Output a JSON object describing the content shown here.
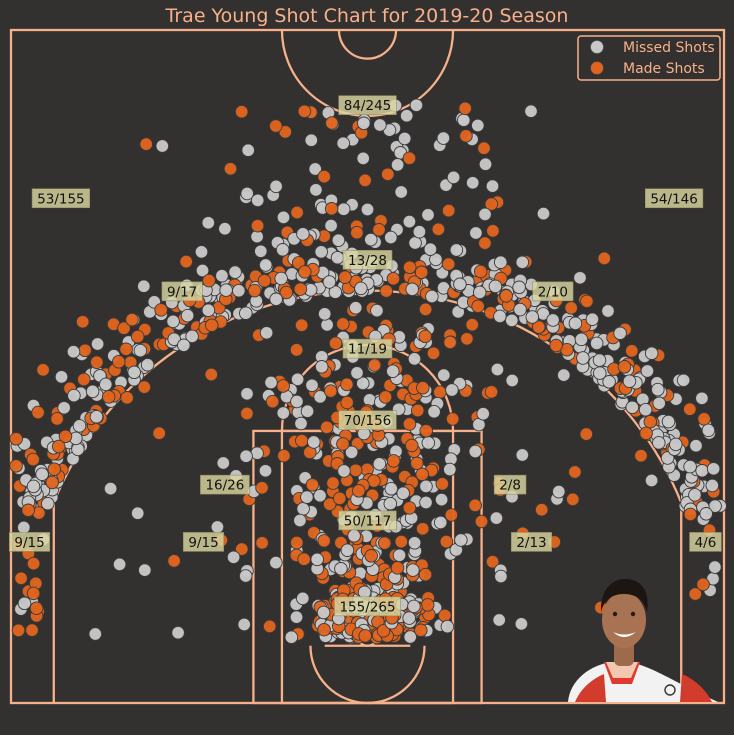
{
  "title": "Trae Young Shot Chart for 2019-20 Season",
  "colors": {
    "background": "#333030",
    "court_lines": "#f7b18a",
    "title": "#f7b18a",
    "made": "#e0641e",
    "missed": "#c8c8c8",
    "zone_label_bg": "#d8d6a0"
  },
  "legend": {
    "placement": "top-right",
    "missed_label": "Missed Shots",
    "made_label": "Made Shots"
  },
  "player_photo": {
    "icon": "player-headshot"
  },
  "chart_data": {
    "type": "scatter",
    "title": "Trae Young Shot Chart for 2019-20 Season",
    "xlim": [
      -250,
      250
    ],
    "ylim": [
      -47.5,
      422.5
    ],
    "grid": false,
    "series": [
      {
        "name": "Missed Shots",
        "color": "#c8c8c8"
      },
      {
        "name": "Made Shots",
        "color": "#e0641e"
      }
    ],
    "zones": [
      {
        "label": "155/265",
        "x": 0,
        "y": 20
      },
      {
        "label": "50/117",
        "x": 0,
        "y": 80
      },
      {
        "label": "70/156",
        "x": 0,
        "y": 150
      },
      {
        "label": "11/19",
        "x": 0,
        "y": 200
      },
      {
        "label": "13/28",
        "x": 0,
        "y": 262
      },
      {
        "label": "84/245",
        "x": 0,
        "y": 370
      },
      {
        "label": "16/26",
        "x": -100,
        "y": 105
      },
      {
        "label": "2/8",
        "x": 100,
        "y": 105
      },
      {
        "label": "9/15",
        "x": -115,
        "y": 65
      },
      {
        "label": "2/13",
        "x": 115,
        "y": 65
      },
      {
        "label": "9/17",
        "x": -130,
        "y": 240
      },
      {
        "label": "2/10",
        "x": 130,
        "y": 240
      },
      {
        "label": "53/155",
        "x": -215,
        "y": 305
      },
      {
        "label": "54/146",
        "x": 215,
        "y": 305
      },
      {
        "label": "9/15",
        "x": -237,
        "y": 65
      },
      {
        "label": "4/6",
        "x": 237,
        "y": 65
      }
    ]
  }
}
